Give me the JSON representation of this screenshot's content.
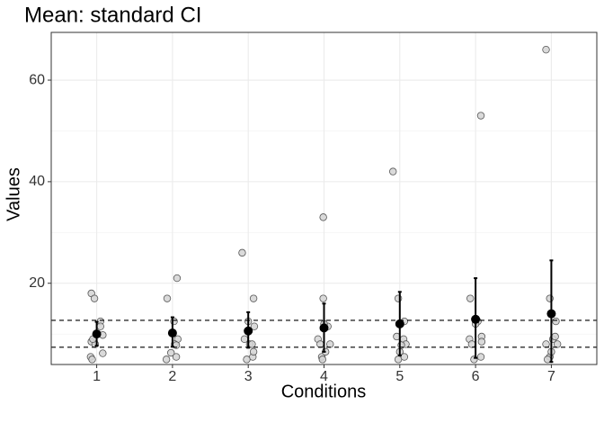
{
  "chart_data": {
    "type": "scatter",
    "title": "Mean: standard CI",
    "x_label": "Conditions",
    "y_label": "Values",
    "xlim": [
      0.4,
      7.6
    ],
    "xticks": [
      1,
      2,
      3,
      4,
      5,
      6,
      7
    ],
    "ylim": [
      4,
      69.4
    ],
    "yticks": [
      20,
      40,
      60
    ],
    "y_minor_grid": [
      10,
      30,
      50
    ],
    "grid": true,
    "points": {
      "color": "#d3d3d3",
      "x": [
        0.93,
        0.97,
        0.93,
        0.98,
        1.05,
        1.05,
        1.08,
        0.92,
        0.94,
        1.08,
        0.95,
        1.93,
        2.06,
        1.98,
        1.92,
        2.05,
        2.07,
        2.03,
        2.02,
        2.05,
        2.92,
        3.07,
        3.0,
        3.08,
        2.95,
        3.02,
        3.06,
        2.98,
        3.07,
        3.05,
        3.99,
        3.99,
        4.05,
        3.92,
        3.95,
        4.08,
        3.97,
        3.98,
        4.02,
        4.0,
        4.91,
        4.98,
        5.06,
        4.96,
        5.05,
        5.08,
        5.0,
        4.98,
        5.06,
        5.02,
        6.07,
        5.93,
        6.03,
        6.08,
        5.92,
        6.08,
        5.95,
        5.98,
        6.07,
        6.0,
        6.93,
        6.98,
        7.06,
        7.02,
        7.08,
        6.93,
        6.98,
        6.95,
        7.05,
        7.0
      ],
      "y": [
        18,
        17,
        8.5,
        8,
        12.5,
        11.5,
        9.8,
        5.5,
        5,
        6.2,
        9,
        17,
        21,
        6.3,
        5,
        5.5,
        9,
        8,
        12.5,
        7.8,
        26,
        17,
        12.5,
        11.5,
        9,
        8,
        5.5,
        5,
        6.5,
        8,
        33,
        17,
        11.5,
        9,
        8,
        8,
        5.5,
        5,
        6.5,
        12,
        42,
        17,
        12.5,
        9.5,
        9,
        8,
        6.5,
        5,
        5.5,
        7.8,
        53,
        17,
        12.5,
        9.5,
        9,
        8.5,
        8,
        5,
        5.5,
        12,
        66,
        17,
        12.5,
        9,
        8,
        8,
        5.5,
        5,
        9.5,
        6.5
      ]
    },
    "means": {
      "color": "#000000",
      "x": [
        1,
        2,
        3,
        4,
        5,
        6,
        7
      ],
      "values": [
        10,
        10.2,
        10.6,
        11.2,
        12,
        12.9,
        14
      ],
      "ci_lower": [
        7.7,
        7.5,
        7.3,
        6.5,
        5.8,
        5.3,
        4.5
      ],
      "ci_upper": [
        12.4,
        13.3,
        14.3,
        16,
        18.3,
        21,
        24.5
      ]
    },
    "hlines": [
      7.4,
      12.7
    ]
  }
}
